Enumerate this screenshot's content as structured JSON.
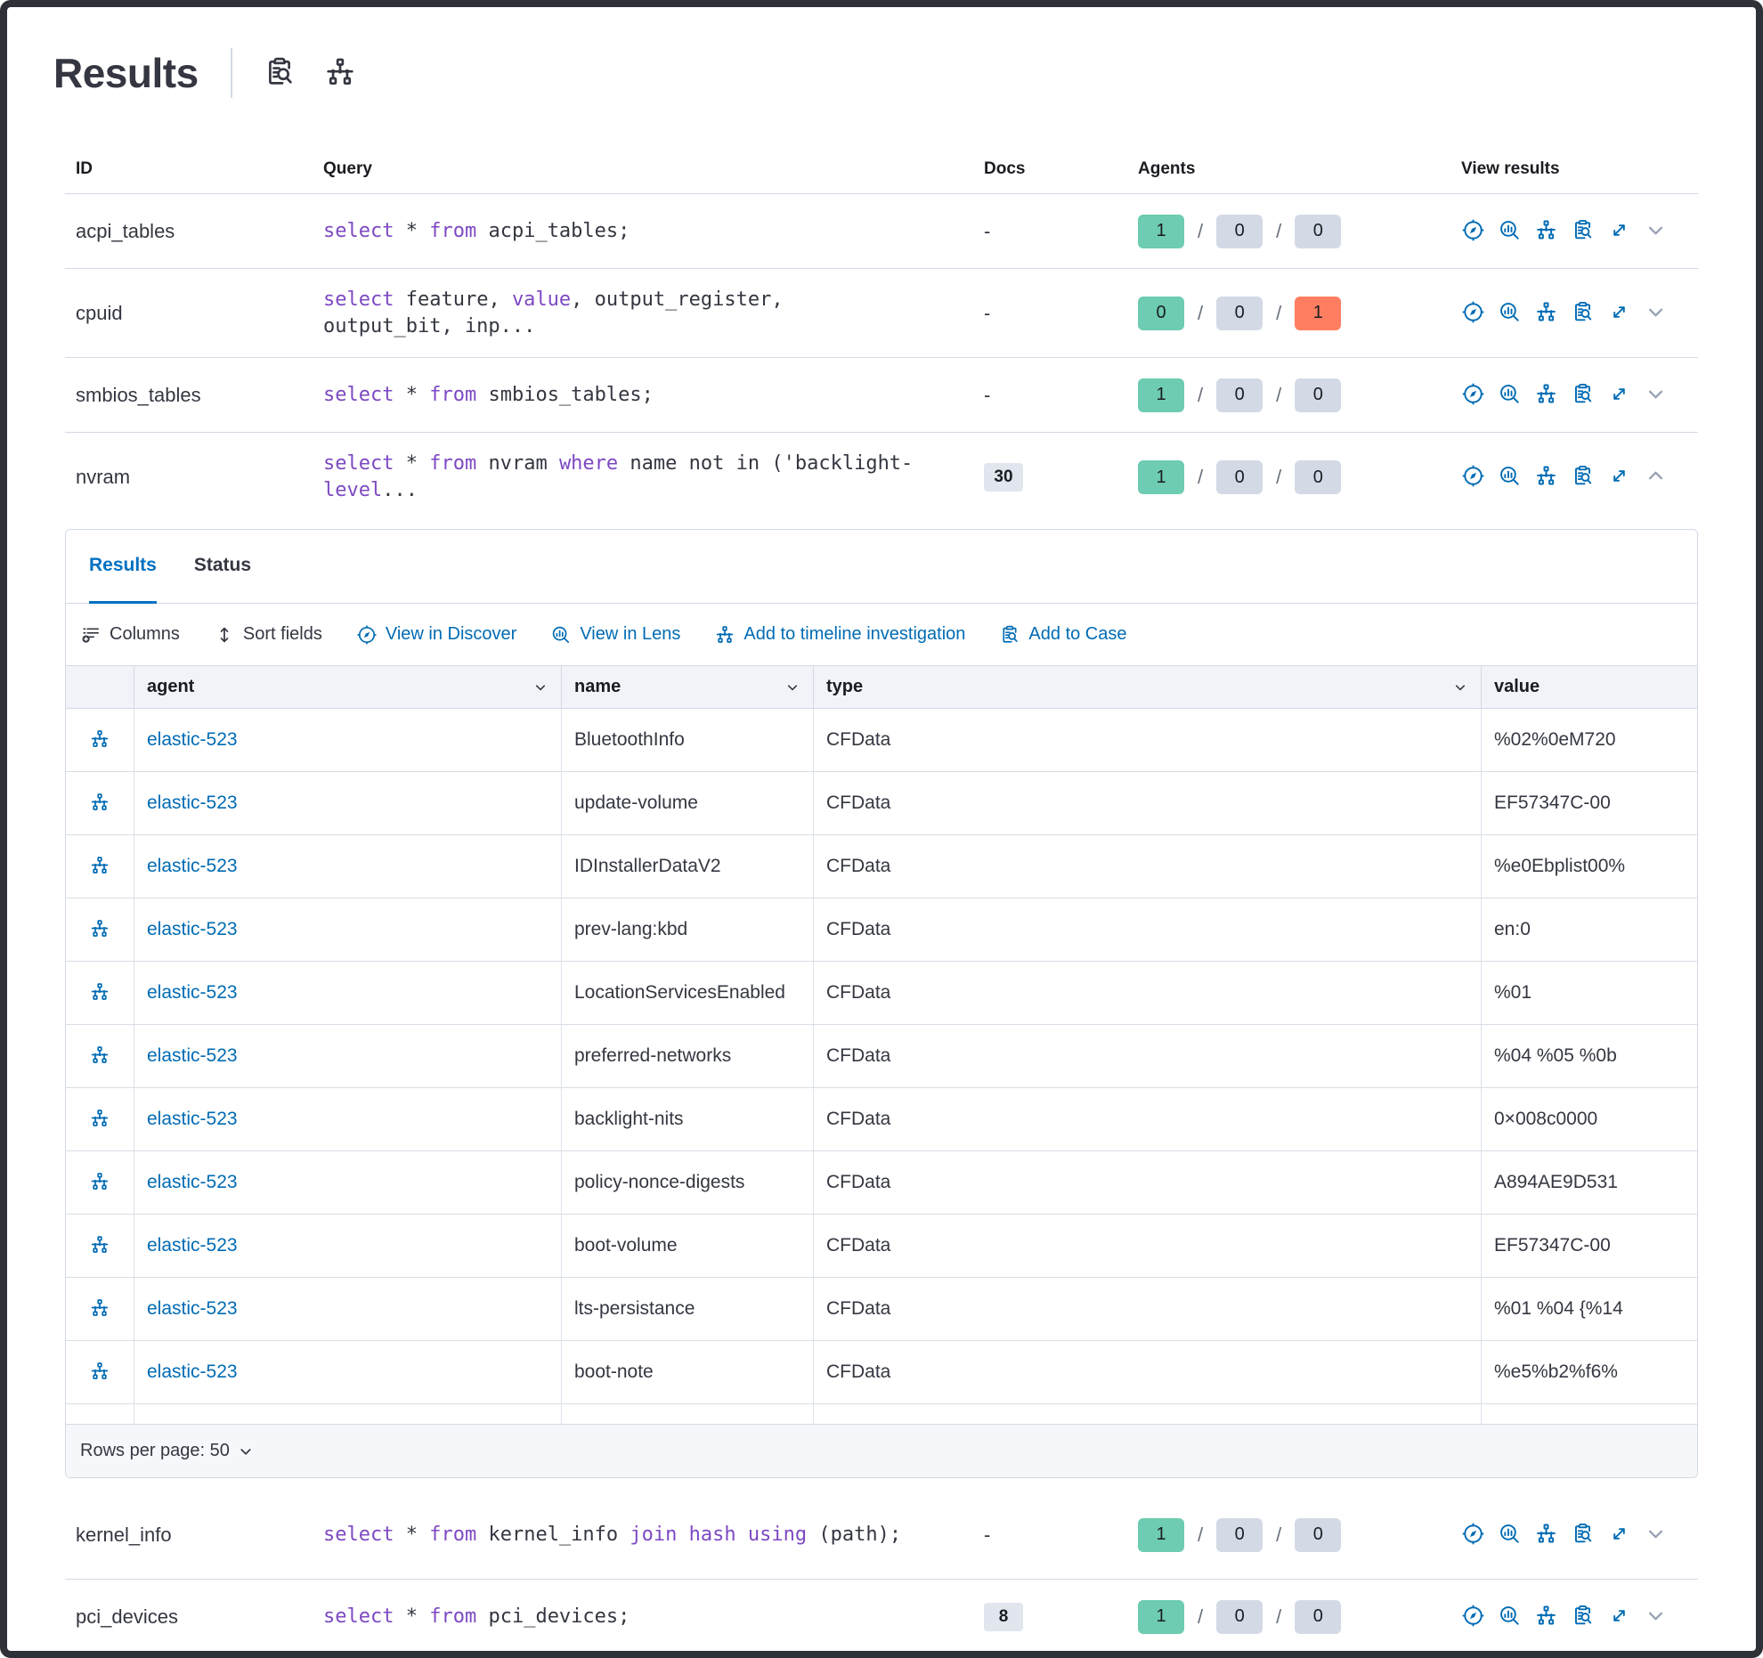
{
  "header": {
    "title": "Results",
    "icons": [
      {
        "name": "inspect-icon"
      },
      {
        "name": "network-icon"
      }
    ]
  },
  "results_table": {
    "columns": [
      "ID",
      "Query",
      "Docs",
      "Agents",
      "View results"
    ],
    "view_icons": [
      "discover-icon",
      "lens-icon",
      "timeline-icon",
      "case-icon",
      "expand-icon"
    ],
    "rows": [
      {
        "id": "acpi_tables",
        "query": [
          [
            "select",
            1
          ],
          [
            " * ",
            0
          ],
          [
            "from",
            1
          ],
          [
            " acpi_tables;",
            0
          ]
        ],
        "docs": "-",
        "agents": [
          "1",
          "0",
          "0"
        ],
        "expanded": false
      },
      {
        "id": "cpuid",
        "query": [
          [
            "select",
            1
          ],
          [
            " feature, ",
            0
          ],
          [
            "value",
            1
          ],
          [
            ", output_register, output_bit, inp...",
            0
          ]
        ],
        "docs": "-",
        "agents": [
          "0",
          "0",
          "1"
        ],
        "expanded": false
      },
      {
        "id": "smbios_tables",
        "query": [
          [
            "select",
            1
          ],
          [
            " * ",
            0
          ],
          [
            "from",
            1
          ],
          [
            " smbios_tables;",
            0
          ]
        ],
        "docs": "-",
        "agents": [
          "1",
          "0",
          "0"
        ],
        "expanded": false
      },
      {
        "id": "nvram",
        "query": [
          [
            "select",
            1
          ],
          [
            " * ",
            0
          ],
          [
            "from",
            1
          ],
          [
            " nvram ",
            0
          ],
          [
            "where",
            1
          ],
          [
            " name not in ('backlight-",
            0
          ],
          [
            "level",
            1
          ],
          [
            "...",
            0
          ]
        ],
        "docs": "30",
        "agents": [
          "1",
          "0",
          "0"
        ],
        "expanded": true
      },
      {
        "id": "kernel_info",
        "query": [
          [
            "select",
            1
          ],
          [
            " * ",
            0
          ],
          [
            "from",
            1
          ],
          [
            " kernel_info ",
            0
          ],
          [
            "join",
            1
          ],
          [
            " ",
            0
          ],
          [
            "hash",
            1
          ],
          [
            " ",
            0
          ],
          [
            "using",
            1
          ],
          [
            " (path);",
            0
          ]
        ],
        "docs": "-",
        "agents": [
          "1",
          "0",
          "0"
        ],
        "expanded": false
      },
      {
        "id": "pci_devices",
        "query": [
          [
            "select",
            1
          ],
          [
            " * ",
            0
          ],
          [
            "from",
            1
          ],
          [
            " pci_devices;",
            0
          ]
        ],
        "docs": "8",
        "agents": [
          "1",
          "0",
          "0"
        ],
        "expanded": false
      }
    ]
  },
  "expanded_panel": {
    "tabs": [
      {
        "label": "Results",
        "active": true
      },
      {
        "label": "Status",
        "active": false
      }
    ],
    "toolbar": [
      {
        "label": "Columns",
        "icon": "columns-icon",
        "primary": false
      },
      {
        "label": "Sort fields",
        "icon": "sort-icon",
        "primary": false
      },
      {
        "label": "View in Discover",
        "icon": "discover-icon",
        "primary": true
      },
      {
        "label": "View in Lens",
        "icon": "lens-icon",
        "primary": true
      },
      {
        "label": "Add to timeline investigation",
        "icon": "timeline-icon",
        "primary": true
      },
      {
        "label": "Add to Case",
        "icon": "case-icon",
        "primary": true
      }
    ],
    "grid": {
      "columns": [
        {
          "label": "agent",
          "sortable": true
        },
        {
          "label": "name",
          "sortable": true
        },
        {
          "label": "type",
          "sortable": true
        },
        {
          "label": "value",
          "sortable": false
        }
      ],
      "rows": [
        {
          "agent": "elastic-523",
          "name": "BluetoothInfo",
          "type": "CFData",
          "value": "%02%0eM720"
        },
        {
          "agent": "elastic-523",
          "name": "update-volume",
          "type": "CFData",
          "value": "EF57347C-00"
        },
        {
          "agent": "elastic-523",
          "name": "IDInstallerDataV2",
          "type": "CFData",
          "value": "%e0Ebplist00%"
        },
        {
          "agent": "elastic-523",
          "name": "prev-lang:kbd",
          "type": "CFData",
          "value": "en:0"
        },
        {
          "agent": "elastic-523",
          "name": "LocationServicesEnabled",
          "type": "CFData",
          "value": "%01"
        },
        {
          "agent": "elastic-523",
          "name": "preferred-networks",
          "type": "CFData",
          "value": "%04 %05 %0b"
        },
        {
          "agent": "elastic-523",
          "name": "backlight-nits",
          "type": "CFData",
          "value": "0×008c0000"
        },
        {
          "agent": "elastic-523",
          "name": "policy-nonce-digests",
          "type": "CFData",
          "value": "A894AE9D531"
        },
        {
          "agent": "elastic-523",
          "name": "boot-volume",
          "type": "CFData",
          "value": "EF57347C-00"
        },
        {
          "agent": "elastic-523",
          "name": "lts-persistance",
          "type": "CFData",
          "value": "%01 %04 {%14"
        },
        {
          "agent": "elastic-523",
          "name": "boot-note",
          "type": "CFData",
          "value": "%e5%b2%f6%"
        }
      ]
    },
    "footer": {
      "rows_per_page": "Rows per page: 50"
    }
  },
  "colors": {
    "primary_blue": "#006bb4",
    "active_tab_blue": "#0071c2",
    "sql_keyword_purple": "#7d49c3",
    "badge_success_green": "#6dccb1",
    "badge_neutral_gray": "#d3dae6",
    "badge_failed_red": "#ff7e62"
  }
}
